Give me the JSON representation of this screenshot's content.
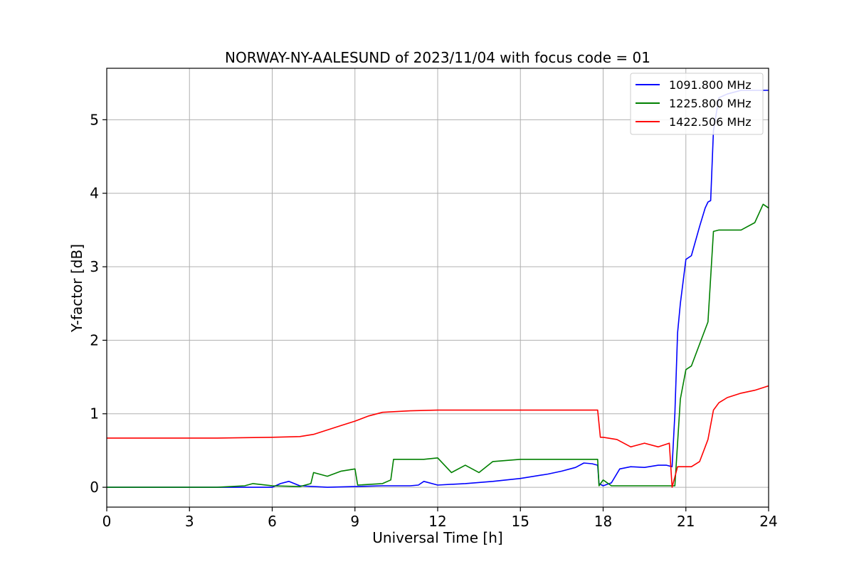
{
  "chart_data": {
    "type": "line",
    "title": "NORWAY-NY-AALESUND of 2023/11/04 with focus code = 01",
    "xlabel": "Universal Time [h]",
    "ylabel": "Y-factor [dB]",
    "xlim": [
      0,
      24
    ],
    "ylim": [
      -0.27,
      5.7
    ],
    "xticks": [
      0,
      3,
      6,
      9,
      12,
      15,
      18,
      21,
      24
    ],
    "xtick_labels": [
      "0",
      "3",
      "6",
      "9",
      "12",
      "15",
      "18",
      "21",
      "24"
    ],
    "yticks": [
      0,
      1,
      2,
      3,
      4,
      5
    ],
    "ytick_labels": [
      "0",
      "1",
      "2",
      "3",
      "4",
      "5"
    ],
    "grid": true,
    "legend_position": "top-right",
    "series": [
      {
        "name": "1091.800 MHz",
        "color": "#0000ff",
        "x": [
          0,
          2,
          4,
          6,
          6.3,
          6.6,
          7,
          8,
          9,
          10,
          11,
          11.3,
          11.5,
          12,
          13,
          14,
          15,
          16,
          16.5,
          17,
          17.3,
          17.6,
          17.8,
          17.85,
          18,
          18.3,
          18.6,
          19,
          19.5,
          20,
          20.3,
          20.5,
          20.6,
          20.7,
          20.8,
          21,
          21.2,
          21.5,
          21.7,
          21.8,
          21.9,
          22,
          22.2,
          22.5,
          23,
          24
        ],
        "y": [
          0,
          0,
          0,
          0,
          0.05,
          0.08,
          0.02,
          0,
          0.01,
          0.02,
          0.02,
          0.03,
          0.08,
          0.03,
          0.05,
          0.08,
          0.12,
          0.18,
          0.22,
          0.27,
          0.33,
          0.32,
          0.3,
          0.05,
          0.02,
          0.06,
          0.25,
          0.28,
          0.27,
          0.3,
          0.3,
          0.28,
          1.0,
          2.1,
          2.5,
          3.1,
          3.15,
          3.55,
          3.8,
          3.88,
          3.9,
          4.85,
          5.3,
          5.35,
          5.4,
          5.4
        ]
      },
      {
        "name": "1225.800 MHz",
        "color": "#008000",
        "x": [
          0,
          2,
          4,
          5,
          5.3,
          6,
          7,
          7.4,
          7.5,
          8,
          8.5,
          9,
          9.1,
          10,
          10.3,
          10.4,
          11,
          11.5,
          12,
          12.5,
          13,
          13.5,
          14,
          15,
          16,
          17,
          17.8,
          17.85,
          18,
          18.3,
          19,
          20,
          20.4,
          20.6,
          20.8,
          21,
          21.2,
          21.5,
          21.8,
          22,
          22.2,
          23,
          23.5,
          23.8,
          24
        ],
        "y": [
          0,
          0,
          0,
          0.02,
          0.05,
          0.02,
          0.01,
          0.05,
          0.2,
          0.15,
          0.22,
          0.25,
          0.03,
          0.05,
          0.1,
          0.38,
          0.38,
          0.38,
          0.4,
          0.2,
          0.3,
          0.2,
          0.35,
          0.38,
          0.38,
          0.38,
          0.38,
          0.02,
          0.1,
          0.02,
          0.02,
          0.02,
          0.02,
          0.02,
          1.2,
          1.6,
          1.65,
          1.95,
          2.25,
          3.48,
          3.5,
          3.5,
          3.6,
          3.85,
          3.8
        ]
      },
      {
        "name": "1422.506 MHz",
        "color": "#ff0000",
        "x": [
          0,
          2,
          4,
          6,
          7,
          7.5,
          8,
          8.5,
          9,
          9.5,
          10,
          11,
          12,
          13,
          14,
          15,
          16,
          17,
          17.7,
          17.8,
          17.9,
          18,
          18.5,
          19,
          19.5,
          20,
          20.4,
          20.5,
          20.7,
          21,
          21.2,
          21.5,
          21.7,
          21.8,
          22,
          22.2,
          22.5,
          23,
          23.5,
          24
        ],
        "y": [
          0.67,
          0.67,
          0.67,
          0.68,
          0.69,
          0.72,
          0.78,
          0.84,
          0.9,
          0.97,
          1.02,
          1.04,
          1.05,
          1.05,
          1.05,
          1.05,
          1.05,
          1.05,
          1.05,
          1.05,
          0.68,
          0.68,
          0.65,
          0.55,
          0.6,
          0.55,
          0.6,
          0.0,
          0.28,
          0.28,
          0.28,
          0.35,
          0.55,
          0.65,
          1.05,
          1.15,
          1.22,
          1.28,
          1.32,
          1.38
        ]
      }
    ]
  }
}
